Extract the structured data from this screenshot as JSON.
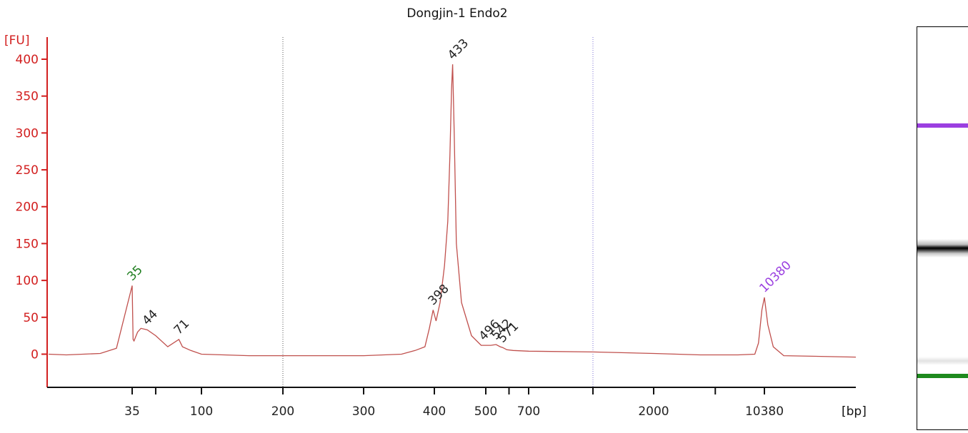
{
  "chart_data": {
    "type": "line",
    "title": "Dongjin-1 Endo2",
    "ylabel": "[FU]",
    "xlabel": "[bp]",
    "ylim": [
      -45,
      430
    ],
    "yticks": [
      0,
      50,
      100,
      150,
      200,
      250,
      300,
      350,
      400
    ],
    "xticks": [
      "35",
      "100",
      "200",
      "300",
      "400",
      "500",
      "700",
      "2000",
      "10380"
    ],
    "grid": "dotted vertical lines at 200 and 1000 bp",
    "series": [
      {
        "color": "#c0504d",
        "points": [
          [
            30,
            0
          ],
          [
            31,
            -1
          ],
          [
            33,
            1
          ],
          [
            34,
            8
          ],
          [
            35,
            93
          ],
          [
            35.5,
            20
          ],
          [
            36,
            18
          ],
          [
            38,
            30
          ],
          [
            40,
            35
          ],
          [
            44,
            33
          ],
          [
            50,
            25
          ],
          [
            60,
            10
          ],
          [
            71,
            20
          ],
          [
            75,
            10
          ],
          [
            85,
            5
          ],
          [
            100,
            0
          ],
          [
            150,
            -2
          ],
          [
            200,
            -2
          ],
          [
            300,
            -2
          ],
          [
            350,
            0
          ],
          [
            370,
            5
          ],
          [
            385,
            10
          ],
          [
            392,
            35
          ],
          [
            398,
            60
          ],
          [
            403,
            45
          ],
          [
            410,
            70
          ],
          [
            418,
            120
          ],
          [
            424,
            180
          ],
          [
            428,
            270
          ],
          [
            431,
            360
          ],
          [
            433,
            393
          ],
          [
            436,
            300
          ],
          [
            440,
            150
          ],
          [
            450,
            70
          ],
          [
            470,
            25
          ],
          [
            490,
            12
          ],
          [
            496,
            12
          ],
          [
            520,
            12
          ],
          [
            542,
            13
          ],
          [
            560,
            10
          ],
          [
            571,
            9
          ],
          [
            590,
            6
          ],
          [
            620,
            5
          ],
          [
            700,
            4
          ],
          [
            1000,
            3
          ],
          [
            2000,
            1
          ],
          [
            4000,
            -1
          ],
          [
            7000,
            -1
          ],
          [
            9000,
            0
          ],
          [
            9500,
            15
          ],
          [
            10000,
            60
          ],
          [
            10380,
            77
          ],
          [
            10800,
            40
          ],
          [
            11500,
            10
          ],
          [
            13000,
            -2
          ],
          [
            30000,
            -4
          ]
        ]
      }
    ],
    "peaks": [
      {
        "label": "35",
        "bp": 35,
        "fu": 93,
        "color": "#1e7d1e"
      },
      {
        "label": "44",
        "bp": 44,
        "fu": 33,
        "color": "#222222"
      },
      {
        "label": "71",
        "bp": 71,
        "fu": 20,
        "color": "#222222"
      },
      {
        "label": "398",
        "bp": 398,
        "fu": 60,
        "color": "#222222"
      },
      {
        "label": "433",
        "bp": 433,
        "fu": 393,
        "color": "#222222"
      },
      {
        "label": "496",
        "bp": 496,
        "fu": 12,
        "color": "#222222"
      },
      {
        "label": "542",
        "bp": 542,
        "fu": 13,
        "color": "#222222"
      },
      {
        "label": "571",
        "bp": 571,
        "fu": 9,
        "color": "#222222"
      },
      {
        "label": "10380",
        "bp": 10380,
        "fu": 77,
        "color": "#9b3fe0"
      }
    ]
  },
  "gel": {
    "upper_marker_color": "#9b3fe0",
    "lower_marker_color": "#1e8a1e",
    "band_color": "#000000"
  }
}
